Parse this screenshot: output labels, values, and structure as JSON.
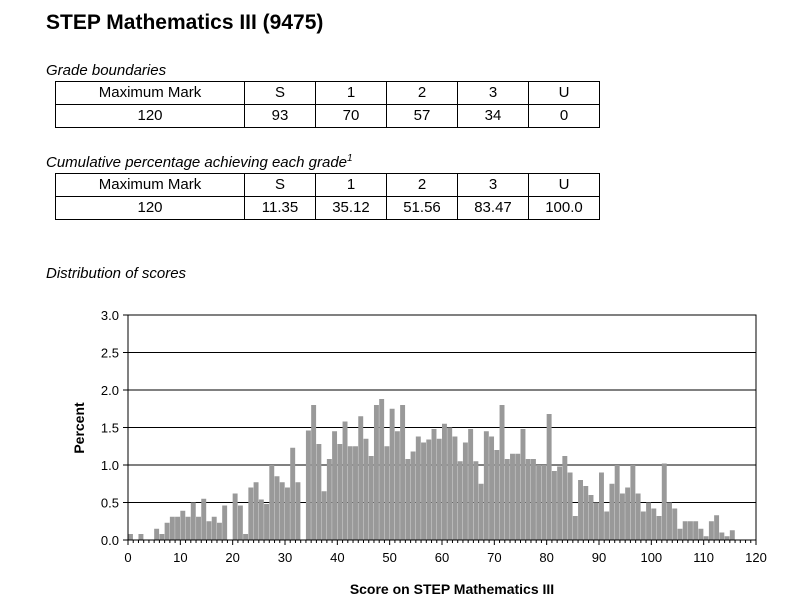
{
  "page_title": "STEP Mathematics III (9475)",
  "grade_boundaries": {
    "label": "Grade boundaries",
    "headers": [
      "Maximum Mark",
      "S",
      "1",
      "2",
      "3",
      "U"
    ],
    "values": [
      "120",
      "93",
      "70",
      "57",
      "34",
      "0"
    ]
  },
  "cumulative": {
    "label": "Cumulative percentage achieving each grade",
    "footnote": "1",
    "headers": [
      "Maximum Mark",
      "S",
      "1",
      "2",
      "3",
      "U"
    ],
    "values": [
      "120",
      "11.35",
      "35.12",
      "51.56",
      "83.47",
      "100.0"
    ]
  },
  "distribution": {
    "label": "Distribution of scores"
  },
  "chart_data": {
    "type": "bar",
    "xlabel": "Score on STEP Mathematics III",
    "ylabel": "Percent",
    "xlim": [
      0,
      120
    ],
    "ylim": [
      0,
      3.0
    ],
    "xticks": [
      "0",
      "10",
      "20",
      "30",
      "40",
      "50",
      "60",
      "70",
      "80",
      "90",
      "100",
      "110",
      "120"
    ],
    "yticks": [
      "0.0",
      "0.5",
      "1.0",
      "1.5",
      "2.0",
      "2.5",
      "3.0"
    ],
    "grid": "horizontal",
    "bar_color": "#999999",
    "x": [
      0,
      1,
      2,
      3,
      4,
      5,
      6,
      7,
      8,
      9,
      10,
      11,
      12,
      13,
      14,
      15,
      16,
      17,
      18,
      19,
      20,
      21,
      22,
      23,
      24,
      25,
      26,
      27,
      28,
      29,
      30,
      31,
      32,
      33,
      34,
      35,
      36,
      37,
      38,
      39,
      40,
      41,
      42,
      43,
      44,
      45,
      46,
      47,
      48,
      49,
      50,
      51,
      52,
      53,
      54,
      55,
      56,
      57,
      58,
      59,
      60,
      61,
      62,
      63,
      64,
      65,
      66,
      67,
      68,
      69,
      70,
      71,
      72,
      73,
      74,
      75,
      76,
      77,
      78,
      79,
      80,
      81,
      82,
      83,
      84,
      85,
      86,
      87,
      88,
      89,
      90,
      91,
      92,
      93,
      94,
      95,
      96,
      97,
      98,
      99,
      100,
      101,
      102,
      103,
      104,
      105,
      106,
      107,
      108,
      109,
      110,
      111,
      112,
      113,
      114,
      115,
      116,
      117,
      118,
      119,
      120
    ],
    "values": [
      0.08,
      0.0,
      0.08,
      0.0,
      0.0,
      0.15,
      0.08,
      0.23,
      0.31,
      0.31,
      0.39,
      0.31,
      0.5,
      0.31,
      0.55,
      0.25,
      0.31,
      0.23,
      0.46,
      0.0,
      0.62,
      0.46,
      0.08,
      0.7,
      0.77,
      0.54,
      0.48,
      1.0,
      0.85,
      0.77,
      0.7,
      1.23,
      0.77,
      0.0,
      1.46,
      1.8,
      1.28,
      0.65,
      1.08,
      1.45,
      1.28,
      1.58,
      1.25,
      1.25,
      1.65,
      1.35,
      1.12,
      1.8,
      1.88,
      1.25,
      1.75,
      1.45,
      1.8,
      1.08,
      1.18,
      1.38,
      1.3,
      1.34,
      1.48,
      1.35,
      1.55,
      1.5,
      1.38,
      1.05,
      1.3,
      1.48,
      1.05,
      0.75,
      1.45,
      1.38,
      1.2,
      1.8,
      1.08,
      1.15,
      1.15,
      1.48,
      1.08,
      1.08,
      1.0,
      1.0,
      1.68,
      0.92,
      0.98,
      1.12,
      0.9,
      0.32,
      0.8,
      0.72,
      0.6,
      0.5,
      0.9,
      0.38,
      0.75,
      1.0,
      0.62,
      0.7,
      1.0,
      0.62,
      0.38,
      0.5,
      0.42,
      0.32,
      1.02,
      0.5,
      0.42,
      0.15,
      0.25,
      0.25,
      0.25,
      0.15,
      0.05,
      0.25,
      0.33,
      0.1,
      0.05,
      0.13,
      0.0,
      0.0,
      0.0,
      0.0,
      0.0
    ]
  }
}
